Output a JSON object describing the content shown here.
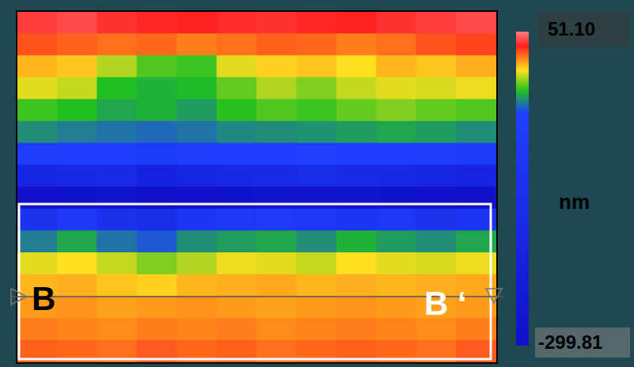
{
  "chart_data": {
    "type": "heatmap",
    "tick_labels": false,
    "cells": [
      [
        40,
        42,
        38,
        36,
        35,
        37,
        38,
        36,
        35,
        38,
        40,
        42
      ],
      [
        28,
        26,
        24,
        25,
        22,
        24,
        26,
        25,
        22,
        24,
        28,
        30
      ],
      [
        14,
        12,
        0,
        -10,
        -12,
        5,
        10,
        12,
        8,
        14,
        12,
        15
      ],
      [
        5,
        2,
        -15,
        -18,
        -16,
        -8,
        0,
        -5,
        2,
        5,
        4,
        6
      ],
      [
        -12,
        -15,
        -20,
        -18,
        -22,
        -14,
        -10,
        -12,
        -8,
        -5,
        -8,
        -10
      ],
      [
        -25,
        -28,
        -30,
        -32,
        -30,
        -26,
        -25,
        -24,
        -22,
        -20,
        -22,
        -25
      ],
      [
        -60,
        -55,
        -50,
        -70,
        -60,
        -55,
        -50,
        -45,
        -50,
        -55,
        -60,
        -65
      ],
      [
        -180,
        -170,
        -160,
        -200,
        -180,
        -170,
        -160,
        -150,
        -160,
        -170,
        -180,
        -190
      ],
      [
        -290,
        -285,
        -280,
        -295,
        -290,
        -285,
        -280,
        -275,
        -280,
        -285,
        -290,
        -295
      ],
      [
        -110,
        -90,
        -120,
        -150,
        -100,
        -90,
        -80,
        -90,
        -100,
        -90,
        -110,
        -100
      ],
      [
        -28,
        -20,
        -30,
        -35,
        -25,
        -22,
        -20,
        -25,
        -18,
        -22,
        -25,
        -20
      ],
      [
        5,
        8,
        2,
        -5,
        0,
        6,
        5,
        2,
        8,
        5,
        4,
        6
      ],
      [
        14,
        15,
        12,
        10,
        14,
        15,
        16,
        14,
        15,
        14,
        15,
        16
      ],
      [
        18,
        19,
        17,
        18,
        19,
        18,
        17,
        18,
        19,
        18,
        17,
        18
      ],
      [
        22,
        21,
        20,
        22,
        21,
        22,
        20,
        21,
        22,
        21,
        20,
        22
      ],
      [
        26,
        25,
        24,
        27,
        25,
        26,
        24,
        25,
        26,
        25,
        24,
        27
      ]
    ],
    "colorbar": {
      "label": "nm",
      "range": [
        -299.81,
        51.1
      ],
      "ticks": [
        {
          "value": 51.1,
          "label": "51.10"
        },
        {
          "value": -299.81,
          "label": "-299.81"
        }
      ],
      "colorscale": [
        [
          51.1,
          "#ff8080"
        ],
        [
          35,
          "#ff2020"
        ],
        [
          20,
          "#ff8c1a"
        ],
        [
          8,
          "#ffe020"
        ],
        [
          -15,
          "#20c020"
        ],
        [
          -40,
          "#2040ff"
        ],
        [
          -299.81,
          "#1010c8"
        ]
      ]
    },
    "annotations": [
      "B",
      "B ‘"
    ]
  }
}
